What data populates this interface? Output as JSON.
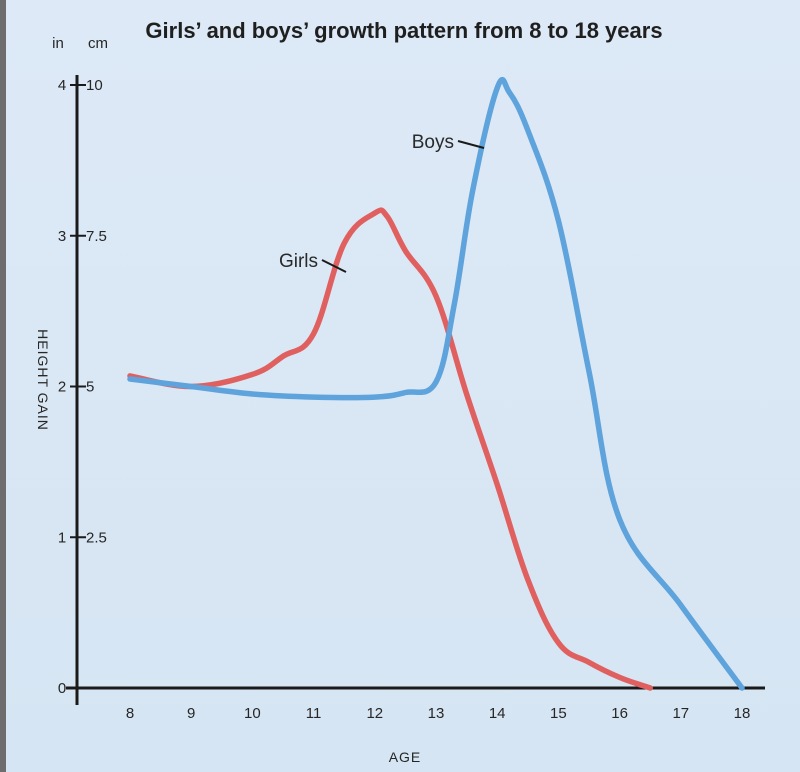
{
  "chart_data": {
    "type": "line",
    "title": "Girls’ and boys’ growth pattern from 8 to 18 years",
    "xlabel": "AGE",
    "ylabel": "HEIGHT GAIN",
    "y_unit_left": "in",
    "y_unit_right": "cm",
    "xlim": [
      7,
      18.3
    ],
    "ylim": [
      0,
      4
    ],
    "x_ticks": [
      "8",
      "9",
      "10",
      "11",
      "12",
      "13",
      "14",
      "15",
      "16",
      "17",
      "18"
    ],
    "x_tick_values": [
      8,
      9,
      10,
      11,
      12,
      13,
      14,
      15,
      16,
      17,
      18
    ],
    "y_ticks_in": [
      "0",
      "1",
      "2",
      "3",
      "4"
    ],
    "y_ticks_in_values": [
      0,
      1,
      2,
      3,
      4
    ],
    "y_ticks_cm": [
      "2.5",
      "5",
      "7.5",
      "10"
    ],
    "y_ticks_cm_values": [
      1,
      2,
      3,
      4
    ],
    "grid": false,
    "series": [
      {
        "name": "Girls",
        "color": "#e06060",
        "x": [
          8,
          9,
          10,
          10.5,
          11,
          11.5,
          12,
          12.2,
          12.5,
          13,
          13.5,
          14,
          14.5,
          15,
          15.5,
          16,
          16.5
        ],
        "y": [
          2.07,
          2.0,
          2.08,
          2.2,
          2.35,
          2.95,
          3.15,
          3.13,
          2.9,
          2.6,
          1.95,
          1.35,
          0.72,
          0.3,
          0.17,
          0.07,
          0.0
        ]
      },
      {
        "name": "Boys",
        "color": "#5ea3dc",
        "x": [
          8,
          9,
          10,
          11,
          12,
          12.5,
          13,
          13.3,
          13.6,
          14,
          14.2,
          14.5,
          15,
          15.5,
          16,
          17,
          18
        ],
        "y": [
          2.05,
          2.0,
          1.95,
          1.93,
          1.93,
          1.96,
          2.03,
          2.55,
          3.3,
          3.98,
          3.95,
          3.7,
          3.1,
          2.1,
          1.12,
          0.55,
          0.0
        ]
      }
    ],
    "annotations": [
      {
        "text": "Girls",
        "series": "Girls"
      },
      {
        "text": "Boys",
        "series": "Boys"
      }
    ]
  }
}
